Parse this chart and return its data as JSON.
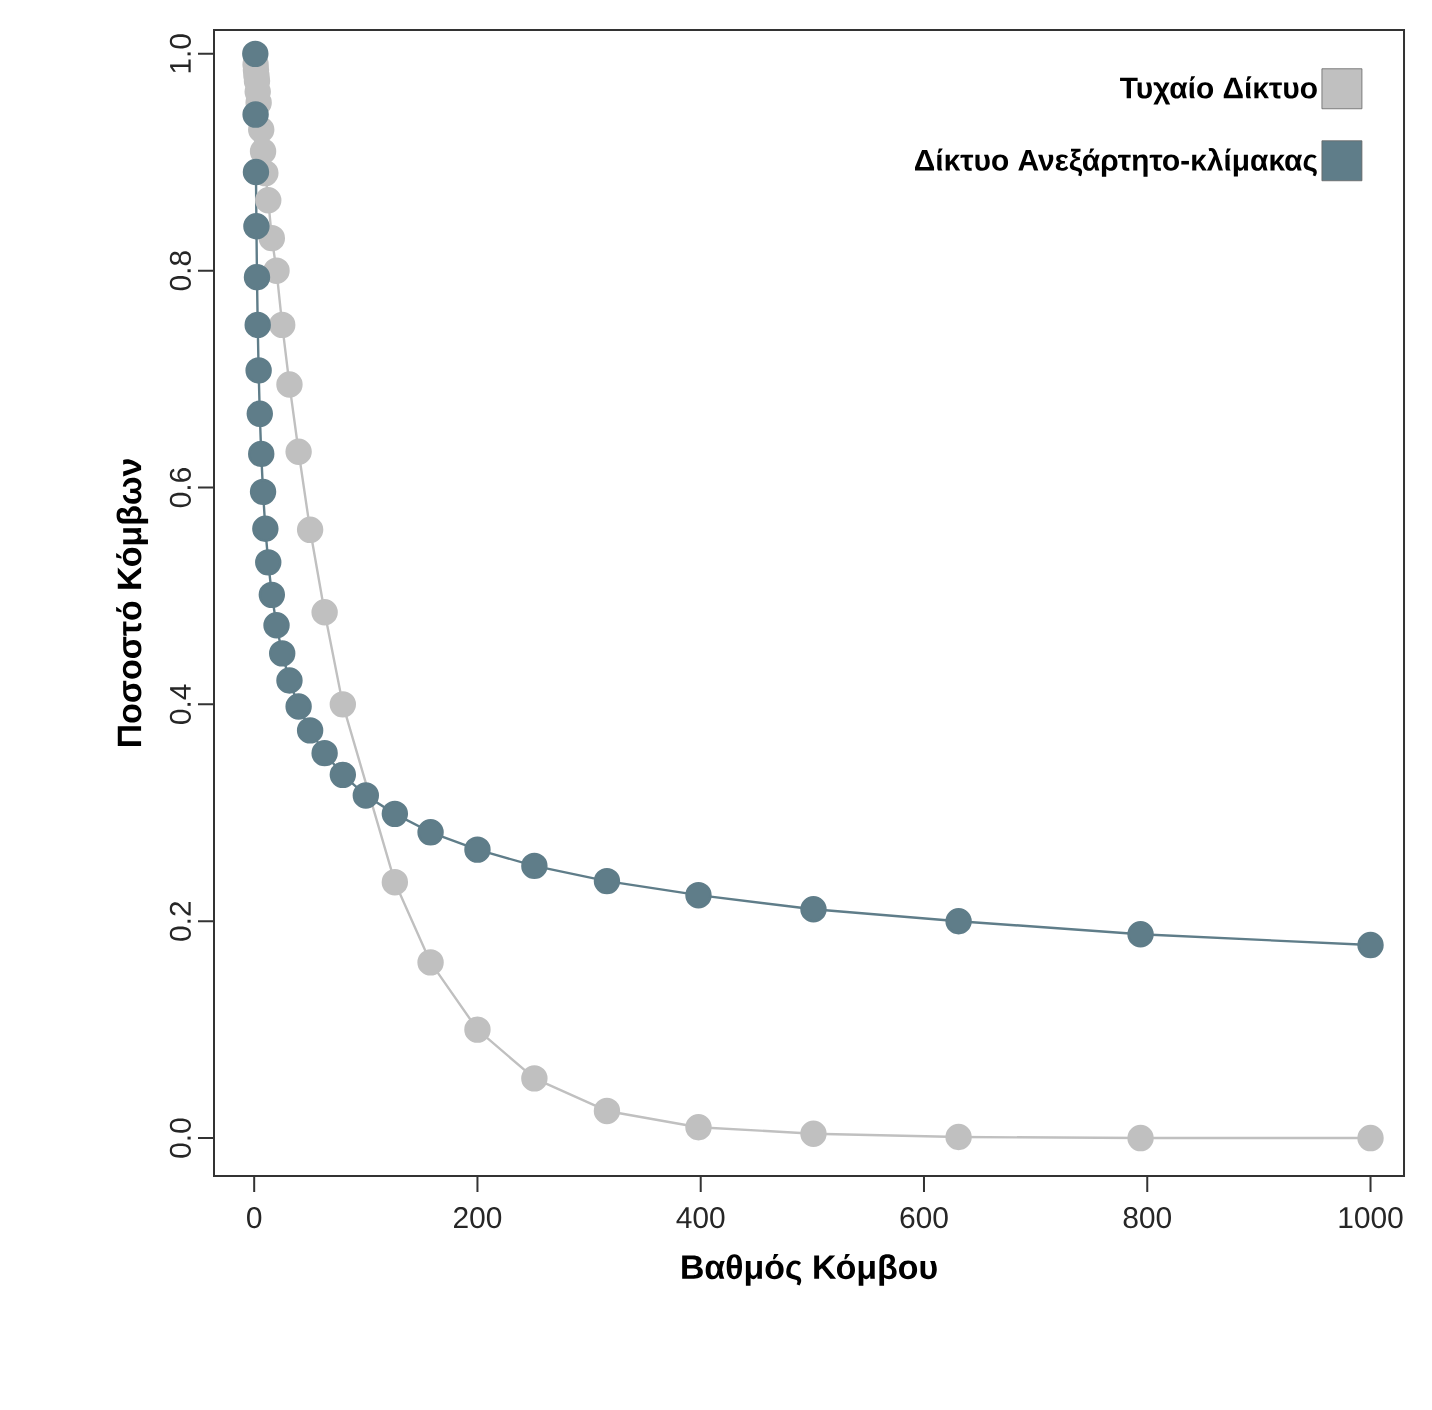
{
  "chart_data": {
    "type": "line",
    "xlabel": "Βαθμός Κόμβου",
    "ylabel": "Ποσοστό Κόμβων",
    "x": [
      1,
      1.26,
      1.58,
      2,
      2.51,
      3.16,
      3.98,
      5.01,
      6.31,
      7.94,
      10,
      12.6,
      15.8,
      20,
      25.1,
      31.6,
      39.8,
      50.1,
      63.1,
      79.4,
      100,
      126,
      158,
      200,
      251,
      316,
      398,
      501,
      631,
      794,
      1000
    ],
    "series": [
      {
        "name": "Τυχαίο Δίκτυο",
        "color": "#c0c0c0",
        "values": [
          null,
          0.99,
          0.985,
          0.98,
          0.975,
          0.965,
          0.955,
          null,
          0.93,
          0.91,
          0.89,
          0.865,
          0.83,
          0.8,
          0.75,
          0.695,
          0.633,
          0.561,
          0.485,
          0.4,
          null,
          0.236,
          0.162,
          0.1,
          0.055,
          0.025,
          0.01,
          0.004,
          0.001,
          0.0,
          0.0
        ]
      },
      {
        "name": "Δίκτυο Ανεξάρτητο-κλίμακας",
        "color": "#5f7d89",
        "values": [
          1.0,
          0.944,
          0.891,
          0.841,
          0.794,
          0.75,
          0.708,
          0.668,
          0.631,
          0.596,
          0.562,
          0.531,
          0.501,
          0.473,
          0.447,
          0.422,
          0.398,
          0.376,
          0.355,
          0.335,
          0.316,
          0.299,
          0.282,
          0.266,
          0.251,
          0.237,
          0.224,
          0.211,
          0.2,
          0.188,
          0.178
        ]
      }
    ],
    "xlim": [
      -36,
      1030
    ],
    "ylim": [
      -0.035,
      1.022
    ],
    "xticks": [
      0,
      200,
      400,
      600,
      800,
      1000
    ],
    "yticks": [
      {
        "value": 0,
        "label": "0.0"
      },
      {
        "value": 0.2,
        "label": "0.2"
      },
      {
        "value": 0.4,
        "label": "0.4"
      },
      {
        "value": 0.6,
        "label": "0.6"
      },
      {
        "value": 0.8,
        "label": "0.8"
      },
      {
        "value": 1.0,
        "label": "1.0"
      }
    ],
    "grid": false,
    "legend": "top right",
    "marker": "circle",
    "line_style": "solid"
  }
}
